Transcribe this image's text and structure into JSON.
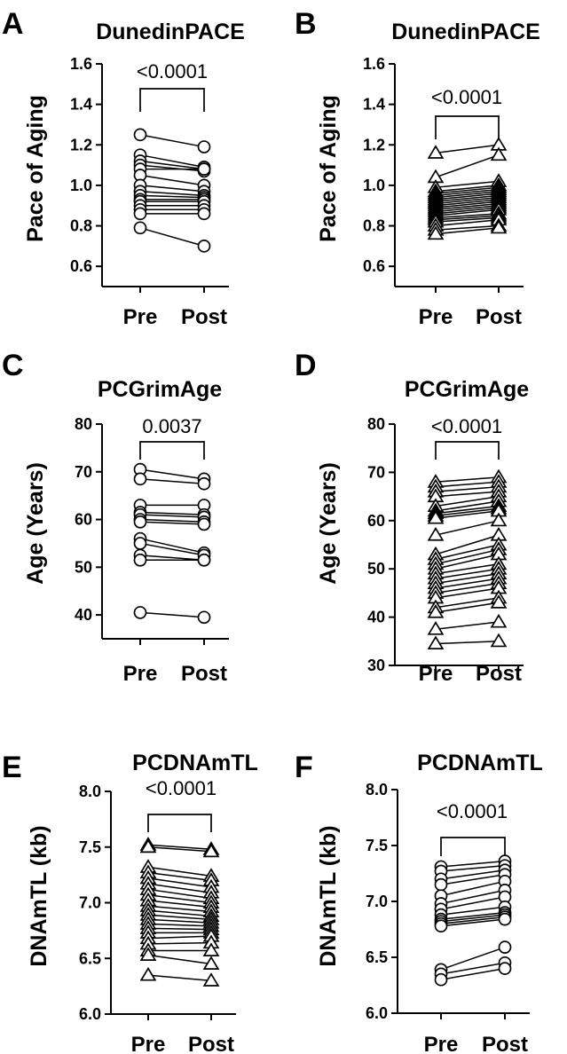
{
  "chart_data": [
    {
      "id": "A",
      "type": "scatter",
      "panel_label": "A",
      "title": "DunedinPACE",
      "ylabel": "Pace of Aging",
      "categories": [
        "Pre",
        "Post"
      ],
      "ylim": [
        0.5,
        1.6
      ],
      "yticks": [
        0.6,
        0.8,
        1.0,
        1.2,
        1.4,
        1.6
      ],
      "tick_decimals": 1,
      "marker": "circle",
      "p_value": "<0.0001",
      "pairs": [
        [
          1.25,
          1.19
        ],
        [
          1.15,
          1.09
        ],
        [
          1.12,
          1.08
        ],
        [
          1.1,
          1.07
        ],
        [
          1.08,
          1.08
        ],
        [
          1.05,
          1.0
        ],
        [
          1.0,
          0.97
        ],
        [
          0.97,
          0.95
        ],
        [
          0.95,
          0.94
        ],
        [
          0.93,
          0.93
        ],
        [
          0.92,
          0.92
        ],
        [
          0.9,
          0.9
        ],
        [
          0.88,
          0.88
        ],
        [
          0.86,
          0.86
        ],
        [
          0.79,
          0.7
        ]
      ]
    },
    {
      "id": "B",
      "type": "scatter",
      "panel_label": "B",
      "title": "DunedinPACE",
      "ylabel": "Pace of Aging",
      "categories": [
        "Pre",
        "Post"
      ],
      "ylim": [
        0.5,
        1.6
      ],
      "yticks": [
        0.6,
        0.8,
        1.0,
        1.2,
        1.4,
        1.6
      ],
      "tick_decimals": 1,
      "marker": "triangle",
      "p_value": "<0.0001",
      "pairs": [
        [
          1.16,
          1.2
        ],
        [
          1.04,
          1.15
        ],
        [
          0.99,
          1.02
        ],
        [
          0.97,
          1.0
        ],
        [
          0.96,
          0.99
        ],
        [
          0.95,
          0.98
        ],
        [
          0.94,
          0.97
        ],
        [
          0.93,
          0.96
        ],
        [
          0.92,
          0.95
        ],
        [
          0.91,
          0.94
        ],
        [
          0.9,
          0.93
        ],
        [
          0.89,
          0.92
        ],
        [
          0.88,
          0.91
        ],
        [
          0.87,
          0.9
        ],
        [
          0.86,
          0.89
        ],
        [
          0.85,
          0.88
        ],
        [
          0.84,
          0.86
        ],
        [
          0.83,
          0.85
        ],
        [
          0.82,
          0.84
        ],
        [
          0.8,
          0.83
        ],
        [
          0.78,
          0.8
        ],
        [
          0.76,
          0.79
        ]
      ]
    },
    {
      "id": "C",
      "type": "scatter",
      "panel_label": "C",
      "title": "PCGrimAge",
      "ylabel": "Age (Years)",
      "categories": [
        "Pre",
        "Post"
      ],
      "ylim": [
        35,
        80
      ],
      "yticks": [
        40,
        50,
        60,
        70,
        80
      ],
      "tick_decimals": 0,
      "marker": "circle",
      "p_value": "0.0037",
      "pairs": [
        [
          70.5,
          68.5
        ],
        [
          68.5,
          67.5
        ],
        [
          63,
          63
        ],
        [
          61.5,
          61
        ],
        [
          61,
          60.5
        ],
        [
          60,
          59.5
        ],
        [
          59.5,
          59
        ],
        [
          56,
          53
        ],
        [
          55,
          52.5
        ],
        [
          52.5,
          51.5
        ],
        [
          51.5,
          51.5
        ],
        [
          40.5,
          39.5
        ]
      ]
    },
    {
      "id": "D",
      "type": "scatter",
      "panel_label": "D",
      "title": "PCGrimAge",
      "ylabel": "Age (Years)",
      "categories": [
        "Pre",
        "Post"
      ],
      "ylim": [
        30,
        80
      ],
      "yticks": [
        30,
        40,
        50,
        60,
        70,
        80
      ],
      "tick_decimals": 0,
      "marker": "triangle",
      "p_value": "<0.0001",
      "pairs": [
        [
          68,
          69
        ],
        [
          67,
          68
        ],
        [
          66,
          67
        ],
        [
          65,
          66
        ],
        [
          63,
          65
        ],
        [
          62,
          64
        ],
        [
          61.5,
          63
        ],
        [
          61,
          62.5
        ],
        [
          60.5,
          62
        ],
        [
          57,
          60
        ],
        [
          53,
          57
        ],
        [
          52,
          55
        ],
        [
          51,
          54
        ],
        [
          50,
          53
        ],
        [
          49,
          51
        ],
        [
          48,
          50
        ],
        [
          47,
          49
        ],
        [
          46,
          48
        ],
        [
          45,
          47
        ],
        [
          44,
          46
        ],
        [
          42,
          44
        ],
        [
          41,
          43
        ],
        [
          37.5,
          39
        ],
        [
          34.5,
          35
        ]
      ]
    },
    {
      "id": "E",
      "type": "scatter",
      "panel_label": "E",
      "title": "PCDNAmTL",
      "ylabel": "DNAmTL (kb)",
      "categories": [
        "Pre",
        "Post"
      ],
      "ylim": [
        6.0,
        8.0
      ],
      "yticks": [
        6.0,
        6.5,
        7.0,
        7.5,
        8.0
      ],
      "tick_decimals": 1,
      "marker": "triangle",
      "p_value": "<0.0001",
      "pairs": [
        [
          7.52,
          7.48
        ],
        [
          7.5,
          7.46
        ],
        [
          7.32,
          7.24
        ],
        [
          7.27,
          7.2
        ],
        [
          7.22,
          7.14
        ],
        [
          7.17,
          7.09
        ],
        [
          7.12,
          7.04
        ],
        [
          7.07,
          7.0
        ],
        [
          7.02,
          6.96
        ],
        [
          6.97,
          6.92
        ],
        [
          6.93,
          6.88
        ],
        [
          6.89,
          6.85
        ],
        [
          6.85,
          6.82
        ],
        [
          6.81,
          6.79
        ],
        [
          6.77,
          6.76
        ],
        [
          6.73,
          6.73
        ],
        [
          6.68,
          6.7
        ],
        [
          6.63,
          6.64
        ],
        [
          6.57,
          6.57
        ],
        [
          6.53,
          6.45
        ],
        [
          6.35,
          6.3
        ]
      ]
    },
    {
      "id": "F",
      "type": "scatter",
      "panel_label": "F",
      "title": "PCDNAmTL",
      "ylabel": "DNAmTL (kb)",
      "categories": [
        "Pre",
        "Post"
      ],
      "ylim": [
        6.0,
        8.0
      ],
      "yticks": [
        6.0,
        6.5,
        7.0,
        7.5,
        8.0
      ],
      "tick_decimals": 1,
      "marker": "circle",
      "p_value": "<0.0001",
      "pairs": [
        [
          7.31,
          7.36
        ],
        [
          7.27,
          7.32
        ],
        [
          7.2,
          7.28
        ],
        [
          7.15,
          7.24
        ],
        [
          7.05,
          7.18
        ],
        [
          6.98,
          7.1
        ],
        [
          6.93,
          7.04
        ],
        [
          6.88,
          6.95
        ],
        [
          6.84,
          6.9
        ],
        [
          6.82,
          6.88
        ],
        [
          6.8,
          6.86
        ],
        [
          6.78,
          6.84
        ],
        [
          6.39,
          6.59
        ],
        [
          6.35,
          6.45
        ],
        [
          6.3,
          6.4
        ]
      ]
    }
  ]
}
